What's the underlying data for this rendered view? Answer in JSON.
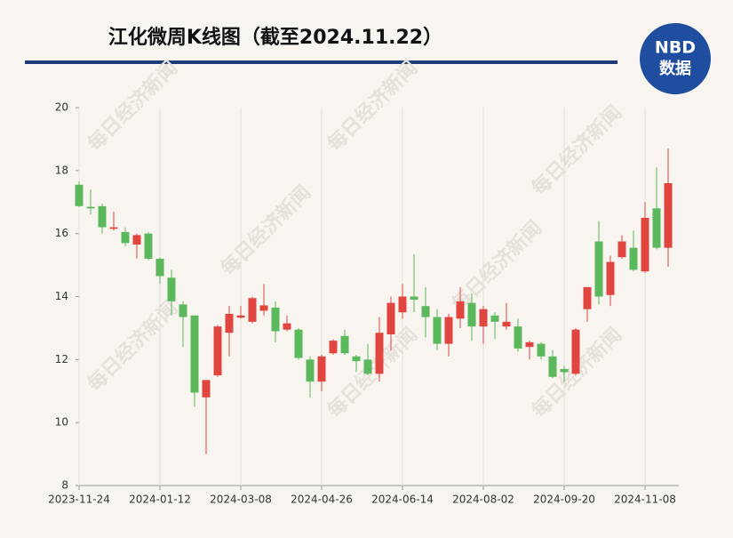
{
  "chart_data": {
    "type": "candlestick",
    "title": "江化微周K线图（截至2024.11.22）",
    "logo": {
      "top": "NBD",
      "bottom": "数据"
    },
    "watermark": "每日经济新闻",
    "categories": [
      "2023-11-24",
      null,
      null,
      null,
      null,
      null,
      null,
      "2024-01-12",
      null,
      null,
      null,
      null,
      null,
      null,
      "2024-03-08",
      null,
      null,
      null,
      null,
      null,
      null,
      "2024-04-26",
      null,
      null,
      null,
      null,
      null,
      null,
      "2024-06-14",
      null,
      null,
      null,
      null,
      null,
      null,
      "2024-08-02",
      null,
      null,
      null,
      null,
      null,
      null,
      "2024-09-20",
      null,
      null,
      null,
      null,
      null,
      null,
      "2024-11-08",
      null,
      null
    ],
    "open": [
      17.55,
      16.85,
      16.87,
      16.15,
      16.05,
      15.65,
      16.0,
      15.2,
      14.6,
      13.75,
      13.4,
      10.8,
      11.5,
      12.85,
      13.33,
      13.2,
      13.55,
      13.65,
      12.95,
      12.95,
      12.0,
      11.3,
      12.2,
      12.75,
      12.1,
      12.0,
      11.55,
      12.8,
      13.5,
      14.0,
      13.7,
      13.35,
      12.5,
      13.3,
      13.8,
      13.05,
      13.4,
      13.05,
      13.05,
      12.4,
      12.5,
      12.1,
      11.7,
      11.55,
      13.6,
      15.75,
      14.05,
      15.25,
      15.55,
      14.8,
      16.8,
      15.55
    ],
    "high": [
      17.65,
      17.4,
      16.95,
      16.7,
      16.2,
      16.0,
      16.05,
      15.25,
      14.85,
      13.85,
      13.4,
      11.35,
      13.1,
      13.7,
      13.7,
      14.0,
      14.4,
      13.85,
      13.4,
      13.0,
      12.1,
      12.15,
      12.65,
      12.95,
      12.15,
      12.5,
      13.35,
      14.0,
      14.4,
      15.35,
      14.3,
      13.6,
      13.45,
      14.3,
      14.1,
      13.7,
      13.5,
      13.8,
      13.3,
      12.6,
      12.55,
      12.3,
      11.8,
      13.0,
      14.3,
      16.4,
      15.3,
      15.95,
      16.1,
      17.0,
      18.1,
      18.7
    ],
    "low": [
      16.85,
      16.6,
      16.0,
      16.1,
      15.6,
      15.2,
      15.15,
      14.4,
      13.4,
      12.4,
      10.5,
      9.0,
      11.45,
      12.1,
      13.3,
      13.15,
      13.4,
      12.55,
      12.9,
      12.0,
      10.8,
      11.0,
      12.15,
      12.15,
      11.6,
      11.5,
      11.3,
      12.3,
      13.3,
      13.5,
      12.7,
      12.3,
      12.1,
      13.0,
      12.6,
      12.5,
      12.65,
      12.95,
      12.25,
      12.0,
      12.0,
      11.4,
      11.3,
      11.5,
      13.2,
      13.75,
      13.7,
      15.2,
      14.8,
      14.75,
      15.5,
      14.95
    ],
    "close": [
      16.87,
      16.8,
      16.2,
      16.2,
      15.7,
      15.95,
      15.2,
      14.65,
      13.85,
      13.35,
      10.95,
      11.35,
      13.05,
      13.45,
      13.4,
      13.95,
      13.72,
      12.9,
      13.15,
      12.05,
      11.3,
      12.1,
      12.6,
      12.2,
      11.95,
      11.55,
      12.85,
      13.8,
      14.0,
      13.9,
      13.35,
      12.5,
      13.35,
      13.85,
      13.05,
      13.6,
      13.2,
      13.2,
      12.35,
      12.55,
      12.1,
      11.45,
      11.6,
      12.95,
      14.3,
      14.0,
      15.1,
      15.75,
      14.85,
      16.5,
      15.55,
      17.6
    ],
    "up_color": "#e0463f",
    "down_color": "#5cb85c",
    "ylim": [
      8,
      20
    ],
    "yticks": [
      8,
      10,
      12,
      14,
      16,
      18,
      20
    ],
    "grid": true
  }
}
